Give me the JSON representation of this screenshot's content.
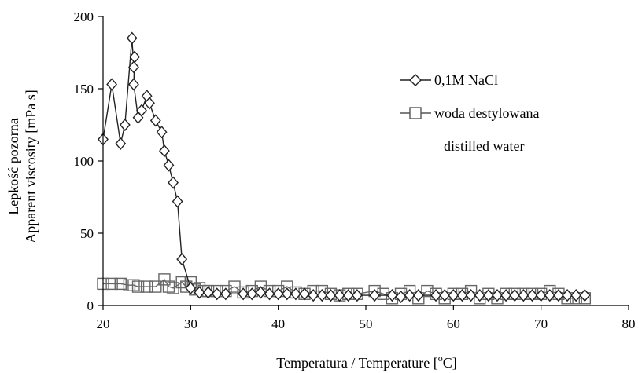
{
  "chart_data": {
    "type": "line",
    "title": "",
    "xlabel": "Temperatura / Temperature [",
    "xlabel_unit_sup": "o",
    "xlabel_unit": "C]",
    "ylabel_lines": [
      "Lepkość pozorna",
      "Apparent viscosity [mPa s]"
    ],
    "xlim": [
      20,
      80
    ],
    "ylim": [
      0,
      200
    ],
    "xticks": [
      20,
      30,
      40,
      50,
      60,
      70,
      80
    ],
    "yticks": [
      0,
      50,
      100,
      150,
      200
    ],
    "grid": false,
    "legend_position": "right",
    "legend_extra": "distilled water",
    "series": [
      {
        "name": "0,1M NaCl",
        "marker": "diamond",
        "color": "#222222",
        "points": [
          [
            20,
            115
          ],
          [
            21,
            153
          ],
          [
            22,
            112
          ],
          [
            22.5,
            125
          ],
          [
            23.3,
            185
          ],
          [
            23.5,
            165
          ],
          [
            23.6,
            172
          ],
          [
            23.5,
            153
          ],
          [
            24,
            130
          ],
          [
            24.4,
            135
          ],
          [
            25,
            145
          ],
          [
            25.3,
            140
          ],
          [
            26,
            128
          ],
          [
            26.7,
            120
          ],
          [
            27,
            107
          ],
          [
            27.5,
            97
          ],
          [
            28,
            85
          ],
          [
            28.5,
            72
          ],
          [
            29,
            32
          ],
          [
            30,
            12
          ],
          [
            31,
            9
          ],
          [
            32,
            9
          ],
          [
            33,
            8
          ],
          [
            34,
            8
          ],
          [
            36,
            8
          ],
          [
            37,
            8
          ],
          [
            38,
            9
          ],
          [
            39,
            8
          ],
          [
            40,
            8
          ],
          [
            41,
            8
          ],
          [
            42,
            8
          ],
          [
            43,
            8
          ],
          [
            44,
            7
          ],
          [
            45,
            7
          ],
          [
            46,
            7
          ],
          [
            47,
            7
          ],
          [
            48,
            7
          ],
          [
            49,
            7
          ],
          [
            51,
            7
          ],
          [
            53,
            7
          ],
          [
            54,
            6
          ],
          [
            55,
            7
          ],
          [
            56,
            7
          ],
          [
            58,
            7
          ],
          [
            59,
            7
          ],
          [
            60,
            7
          ],
          [
            61,
            7
          ],
          [
            62,
            7
          ],
          [
            63,
            7
          ],
          [
            64,
            7
          ],
          [
            65,
            7
          ],
          [
            66,
            7
          ],
          [
            67,
            7
          ],
          [
            68,
            7
          ],
          [
            69,
            7
          ],
          [
            70,
            7
          ],
          [
            71,
            7
          ],
          [
            72,
            7
          ],
          [
            73,
            7
          ],
          [
            74,
            7
          ],
          [
            75,
            7
          ]
        ]
      },
      {
        "name": "woda destylowana",
        "marker": "square",
        "color": "#666666",
        "points": [
          [
            20,
            15
          ],
          [
            21,
            15
          ],
          [
            22,
            15
          ],
          [
            23,
            14
          ],
          [
            23.5,
            14
          ],
          [
            24,
            13
          ],
          [
            25,
            13
          ],
          [
            26,
            13
          ],
          [
            27,
            18
          ],
          [
            27.5,
            13
          ],
          [
            28,
            12
          ],
          [
            29,
            16
          ],
          [
            29.5,
            13
          ],
          [
            30,
            16
          ],
          [
            30.5,
            11
          ],
          [
            31,
            12
          ],
          [
            31.5,
            10
          ],
          [
            32,
            10
          ],
          [
            33,
            10
          ],
          [
            34,
            10
          ],
          [
            35,
            13
          ],
          [
            36,
            9
          ],
          [
            37,
            10
          ],
          [
            38,
            13
          ],
          [
            39,
            10
          ],
          [
            40,
            10
          ],
          [
            41,
            13
          ],
          [
            42,
            9
          ],
          [
            43,
            8
          ],
          [
            44,
            10
          ],
          [
            45,
            10
          ],
          [
            46,
            8
          ],
          [
            47,
            7
          ],
          [
            48,
            8
          ],
          [
            49,
            8
          ],
          [
            51,
            10
          ],
          [
            52,
            8
          ],
          [
            53,
            5
          ],
          [
            54,
            8
          ],
          [
            55,
            10
          ],
          [
            56,
            5
          ],
          [
            57,
            10
          ],
          [
            58,
            8
          ],
          [
            59,
            5
          ],
          [
            60,
            8
          ],
          [
            61,
            8
          ],
          [
            62,
            10
          ],
          [
            63,
            5
          ],
          [
            64,
            8
          ],
          [
            65,
            5
          ],
          [
            66,
            8
          ],
          [
            67,
            8
          ],
          [
            68,
            8
          ],
          [
            69,
            8
          ],
          [
            70,
            8
          ],
          [
            71,
            10
          ],
          [
            72,
            8
          ],
          [
            73,
            5
          ],
          [
            74,
            5
          ],
          [
            75,
            5
          ]
        ]
      }
    ]
  }
}
